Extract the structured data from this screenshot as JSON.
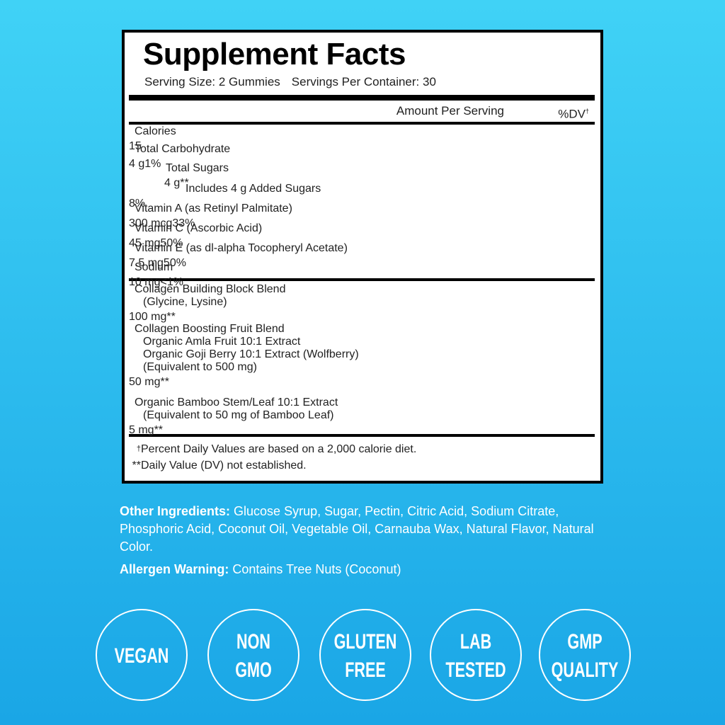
{
  "title": "Supplement Facts",
  "serving_size": "Serving Size: 2 Gummies",
  "servings_per_container": "Servings Per Container: 30",
  "header": {
    "amount": "Amount Per Serving",
    "dv": "%DV",
    "dv_mark": "†"
  },
  "rows": [
    {
      "lines": [
        "Calories"
      ],
      "amount": "15"
    },
    {
      "lines": [
        "Total Carbohydrate"
      ],
      "amount": "4 g",
      "dv": "1%"
    },
    {
      "lines": [
        "Total Sugars"
      ],
      "amount": "4 g",
      "dv": "**"
    },
    {
      "lines": [
        "Includes 4 g Added Sugars"
      ],
      "dv": "8%"
    },
    {
      "lines": [
        "Vitamin A (as Retinyl Palmitate)"
      ],
      "amount": "300 mcg",
      "dv": "33%"
    },
    {
      "lines": [
        "Vitamin C (Ascorbic Acid)"
      ],
      "amount": "45 mg",
      "dv": "50%"
    },
    {
      "lines": [
        "Vitamin E (as dl-alpha Tocopheryl Acetate)"
      ],
      "amount": "7.5 mg",
      "dv": "50%"
    },
    {
      "lines": [
        "Sodium"
      ],
      "amount": "10 mg",
      "dv": "<1%"
    },
    {
      "lines": [
        "Collagen Building Block Blend",
        "(Glycine, Lysine)"
      ],
      "amount": "100 mg",
      "dv": "**"
    },
    {
      "lines": [
        "Collagen Boosting Fruit Blend",
        "Organic Amla Fruit 10:1 Extract",
        "Organic Goji Berry 10:1 Extract (Wolfberry)",
        "(Equivalent to 500 mg)"
      ],
      "amount": "50 mg",
      "dv": "**"
    },
    {
      "lines": [
        "Organic Bamboo Stem/Leaf 10:1 Extract",
        "(Equivalent to 50 mg of Bamboo Leaf)"
      ],
      "amount": "5 mg",
      "dv": "**"
    }
  ],
  "footnotes": [
    {
      "mark": "†",
      "text": "Percent Daily Values are based on a 2,000 calorie diet."
    },
    {
      "mark": "**",
      "text": "Daily Value (DV) not established."
    }
  ],
  "other_ingredients": {
    "label": "Other Ingredients:",
    "text": "Glucose Syrup, Sugar, Pectin, Citric Acid, Sodium Citrate, Phosphoric Acid, Coconut Oil, Vegetable Oil, Carnauba Wax, Natural Flavor, Natural Color."
  },
  "allergen": {
    "label": "Allergen Warning:",
    "text": "Contains Tree Nuts (Coconut)"
  },
  "badges": [
    [
      "VEGAN"
    ],
    [
      "NON",
      "GMO"
    ],
    [
      "GLUTEN",
      "FREE"
    ],
    [
      "LAB",
      "TESTED"
    ],
    [
      "GMP",
      "QUALITY"
    ]
  ]
}
